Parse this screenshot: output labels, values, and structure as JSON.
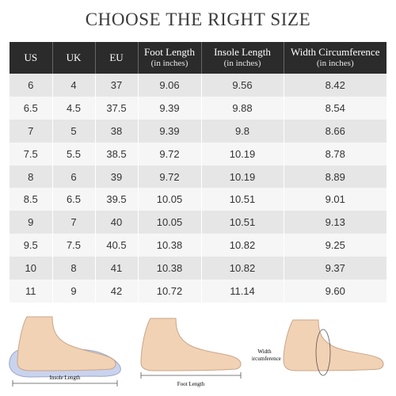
{
  "title": "CHOOSE THE RIGHT SIZE",
  "headers": [
    {
      "label": "US",
      "sub": ""
    },
    {
      "label": "UK",
      "sub": ""
    },
    {
      "label": "EU",
      "sub": ""
    },
    {
      "label": "Foot Length",
      "sub": "(in inches)"
    },
    {
      "label": "Insole Length",
      "sub": "(in inches)"
    },
    {
      "label": "Width Circumference",
      "sub": "(in inches)"
    }
  ],
  "rows": [
    [
      "6",
      "4",
      "37",
      "9.06",
      "9.56",
      "8.42"
    ],
    [
      "6.5",
      "4.5",
      "37.5",
      "9.39",
      "9.88",
      "8.54"
    ],
    [
      "7",
      "5",
      "38",
      "9.39",
      "9.8",
      "8.66"
    ],
    [
      "7.5",
      "5.5",
      "38.5",
      "9.72",
      "10.19",
      "8.78"
    ],
    [
      "8",
      "6",
      "39",
      "9.72",
      "10.19",
      "8.89"
    ],
    [
      "8.5",
      "6.5",
      "39.5",
      "10.05",
      "10.51",
      "9.01"
    ],
    [
      "9",
      "7",
      "40",
      "10.05",
      "10.51",
      "9.13"
    ],
    [
      "9.5",
      "7.5",
      "40.5",
      "10.38",
      "10.82",
      "9.25"
    ],
    [
      "10",
      "8",
      "41",
      "10.38",
      "10.82",
      "9.37"
    ],
    [
      "11",
      "9",
      "42",
      "10.72",
      "11.14",
      "9.60"
    ]
  ],
  "illustrations": {
    "insole_caption": "Insole Length",
    "foot_caption": "Foot Length",
    "width_caption_line1": "Width",
    "width_caption_line2": "Circumference"
  },
  "colors": {
    "header_bg": "#2b2b2b",
    "row_dark": "#e6e6e6",
    "row_light": "#f6f6f6",
    "skin": "#f2d2b4",
    "insole": "#c9d3ee"
  }
}
